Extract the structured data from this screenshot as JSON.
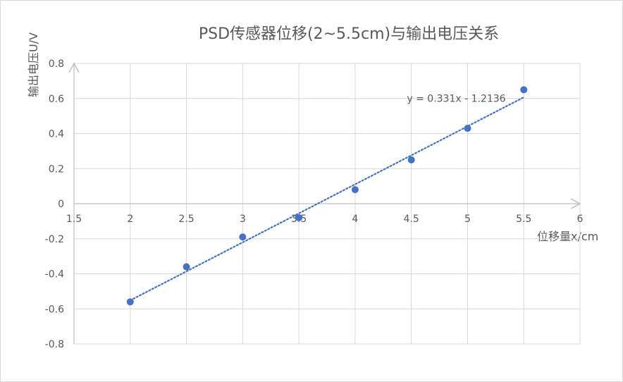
{
  "chart_data": {
    "type": "scatter",
    "title": "PSD传感器位移(2~5.5cm)与输出电压关系",
    "xlabel": "位移量x/cm",
    "ylabel": "输出电压U/V",
    "xlim": [
      1.5,
      6
    ],
    "ylim": [
      -0.8,
      0.8
    ],
    "x_ticks": [
      "1.5",
      "2",
      "2.5",
      "3",
      "3.5",
      "4",
      "4.5",
      "5",
      "5.5",
      "6"
    ],
    "y_ticks": [
      "0.8",
      "0.6",
      "0.4",
      "0.2",
      "0",
      "-0.2",
      "-0.4",
      "-0.6",
      "-0.8"
    ],
    "grid": "vertical and horizontal major gridlines",
    "series": [
      {
        "color": "#4472c4",
        "x": [
          2,
          2.5,
          3,
          3.5,
          4,
          4.5,
          5,
          5.5
        ],
        "y": [
          -0.56,
          -0.36,
          -0.19,
          -0.08,
          0.08,
          0.25,
          0.43,
          0.65
        ]
      }
    ],
    "trendline": {
      "type": "linear",
      "style": "dotted",
      "color": "#4472c4",
      "slope": 0.331,
      "intercept": -1.2136,
      "equation": "y = 0.331x - 1.2136",
      "x_range": [
        2,
        5.5
      ]
    }
  }
}
